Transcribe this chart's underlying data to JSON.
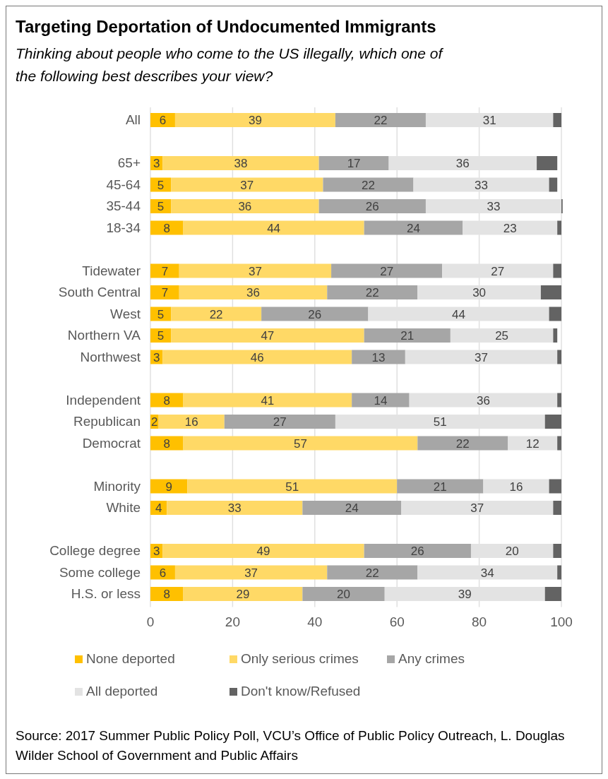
{
  "chart_data": {
    "type": "bar",
    "orientation": "horizontal",
    "stacked": true,
    "title": "Targeting Deportation of Undocumented Immigrants",
    "subtitle": "Thinking about people who come to the US illegally, which one of the following best describes your view?",
    "categories": [
      "All",
      null,
      "65+",
      "45-64",
      "35-44",
      "18-34",
      null,
      "Tidewater",
      "South Central",
      "West",
      "Northern VA",
      "Northwest",
      null,
      "Independent",
      "Republican",
      "Democrat",
      null,
      "Minority",
      "White",
      null,
      "College degree",
      "Some college",
      "H.S. or less"
    ],
    "series": [
      {
        "name": "None deported",
        "color": "#ffc000",
        "values": [
          6,
          null,
          3,
          5,
          5,
          8,
          null,
          7,
          7,
          5,
          5,
          3,
          null,
          8,
          2,
          8,
          null,
          9,
          4,
          null,
          3,
          6,
          8
        ],
        "value_labels": [
          "6",
          null,
          "3",
          "5",
          "5",
          "8",
          null,
          "7",
          "7",
          "5",
          "5",
          "3",
          null,
          "8",
          "2",
          "8",
          null,
          "9",
          "4",
          null,
          "3",
          "6",
          "8"
        ]
      },
      {
        "name": "Only serious crimes",
        "color": "#ffd966",
        "values": [
          39,
          null,
          38,
          37,
          36,
          44,
          null,
          37,
          36,
          22,
          47,
          46,
          null,
          41,
          16,
          57,
          null,
          51,
          33,
          null,
          49,
          37,
          29
        ],
        "value_labels": [
          "39",
          null,
          "38",
          "37",
          "36",
          "44",
          null,
          "37",
          "36",
          "22",
          "47",
          "46",
          null,
          "41",
          "16",
          "57",
          null,
          "51",
          "33",
          null,
          "49",
          "37",
          "29"
        ]
      },
      {
        "name": "Any crimes",
        "color": "#a6a6a6",
        "values": [
          22,
          null,
          17,
          22,
          26,
          24,
          null,
          27,
          22,
          26,
          21,
          13,
          null,
          14,
          27,
          22,
          null,
          21,
          24,
          null,
          26,
          22,
          20
        ],
        "value_labels": [
          "22",
          null,
          "17",
          "22",
          "26",
          "24",
          null,
          "27",
          "22",
          "26",
          "21",
          "13",
          null,
          "14",
          "27",
          "22",
          null,
          "21",
          "24",
          null,
          "26",
          "22",
          "20"
        ]
      },
      {
        "name": "All deported",
        "color": "#e3e3e3",
        "values": [
          31,
          null,
          36,
          33,
          33,
          23,
          null,
          27,
          30,
          44,
          25,
          37,
          null,
          36,
          51,
          12,
          null,
          16,
          37,
          null,
          20,
          34,
          39
        ],
        "value_labels": [
          "31",
          null,
          "36",
          "33",
          "33",
          "23",
          null,
          "27",
          "30",
          "44",
          "25",
          "37",
          null,
          "36",
          "51",
          "12",
          null,
          "16",
          "37",
          null,
          "20",
          "34",
          "39"
        ]
      },
      {
        "name": "Don't know/Refused",
        "color": "#636363",
        "values": [
          2,
          null,
          5,
          2,
          0.3,
          1,
          null,
          2,
          5,
          3,
          1,
          1,
          null,
          1,
          4,
          1,
          null,
          3,
          2,
          null,
          2,
          1,
          4
        ]
      }
    ],
    "xlim": [
      0,
      100
    ],
    "xticks": [
      0,
      20,
      40,
      60,
      80,
      100
    ],
    "grid": "x",
    "legend": "bottom",
    "annotations": [
      "Source: 2017 Summer Public Policy Poll, VCU’s Office of Public Policy Outreach, L. Douglas Wilder School of Government and Public Affairs"
    ]
  }
}
